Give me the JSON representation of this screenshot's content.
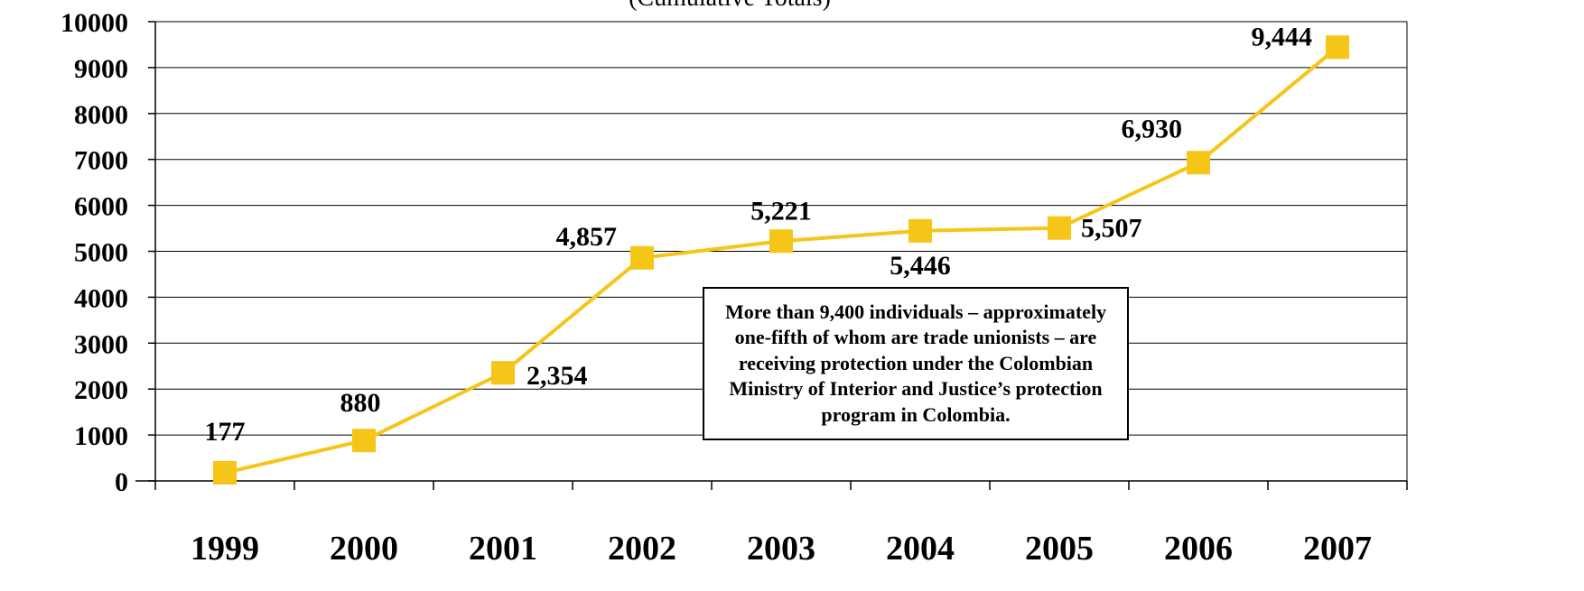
{
  "chart_data": {
    "type": "line",
    "title": "(Cumulative Totals)",
    "xlabel": "",
    "ylabel": "",
    "x": [
      "1999",
      "2000",
      "2001",
      "2002",
      "2003",
      "2004",
      "2005",
      "2006",
      "2007"
    ],
    "series": [
      {
        "values": [
          177,
          880,
          2354,
          4857,
          5221,
          5446,
          5507,
          6930,
          9444
        ],
        "labels": [
          "177",
          "880",
          "2,354",
          "4,857",
          "5,221",
          "5,446",
          "5,507",
          "6,930",
          "9,444"
        ]
      }
    ],
    "ylim": [
      0,
      10000
    ],
    "yticks": [
      "0",
      "1000",
      "2000",
      "3000",
      "4000",
      "5000",
      "6000",
      "7000",
      "8000",
      "9000",
      "10000"
    ],
    "grid": "horizontal",
    "legend": "none",
    "colors": {
      "line": "#F5C518",
      "marker": "#F5C518",
      "grid": "#000000"
    },
    "annotation": "More than 9,400 individuals – approximately one-fifth of whom are trade unionists – are receiving protection under the Colombian Ministry of Interior and Justice’s protection program in Colombia."
  }
}
